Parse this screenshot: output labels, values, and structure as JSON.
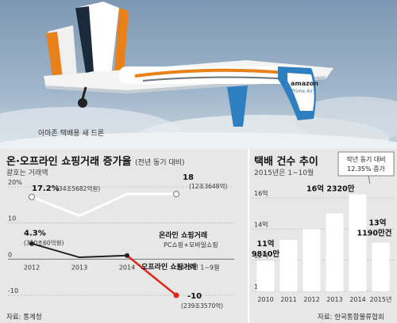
{
  "photo": {
    "caption": "아마존 택배용 새 드론",
    "brand": "amazon",
    "brand_sub": "Prime Air"
  },
  "left_panel": {
    "title": "온·오프라인 쇼핑거래 증가율",
    "title_note": "(전년 동기 대비)",
    "subtitle": "괄호는 거래액",
    "source": "자료: 통계청"
  },
  "right_panel": {
    "title": "택배 건수 추이",
    "subtitle": "2015년은 1~10월",
    "source": "자료: 한국통합물류협회",
    "callout_line1": "작년 동기 대비",
    "callout_line2": "12.35% 증가"
  },
  "chart_data": [
    {
      "type": "line",
      "title": "온·오프라인 쇼핑거래 증가율",
      "categories": [
        "2012",
        "2013",
        "2014",
        "2015년 1~9월"
      ],
      "ylim": [
        -10,
        20
      ],
      "yticks": [
        "20%",
        "10",
        "0",
        "-10"
      ],
      "grid": true,
      "series": [
        {
          "name": "온라인 쇼핑거래",
          "name_note": "PC쇼핑+모바일쇼핑",
          "values": [
            17.2,
            12,
            18,
            18
          ],
          "color": "#ffffff",
          "labels": [
            {
              "index": 0,
              "value": "17.2%",
              "amount": "(34조5682억원)"
            },
            {
              "index": 3,
              "value": "18",
              "amount": "(12조3648억)"
            }
          ]
        },
        {
          "name": "오프라인 쇼핑거래",
          "values": [
            4.3,
            0.5,
            1,
            -10
          ],
          "color": "#222222",
          "accent_color": "#e1261c",
          "labels": [
            {
              "index": 0,
              "value": "4.3%",
              "amount": "(350조60억원)"
            },
            {
              "index": 3,
              "value": "-10",
              "amount": "(239조3570억)"
            }
          ]
        }
      ]
    },
    {
      "type": "bar",
      "title": "택배 건수 추이",
      "categories": [
        "2010",
        "2011",
        "2012",
        "2013",
        "2014",
        "2015년"
      ],
      "values": [
        11.981,
        13.3,
        14.0,
        15.0,
        16.232,
        13.119
      ],
      "ylim": [
        10,
        16
      ],
      "yticks": [
        "16억",
        "14억",
        "12억",
        "10억"
      ],
      "grid": true,
      "bar_color": "#ffffff",
      "value_labels": [
        {
          "index": 0,
          "line1": "11억",
          "line2": "9810만"
        },
        {
          "index": 4,
          "line1": "16억 2320만",
          "line2": ""
        },
        {
          "index": 5,
          "line1": "13억",
          "line2": "1190만건"
        }
      ]
    }
  ]
}
